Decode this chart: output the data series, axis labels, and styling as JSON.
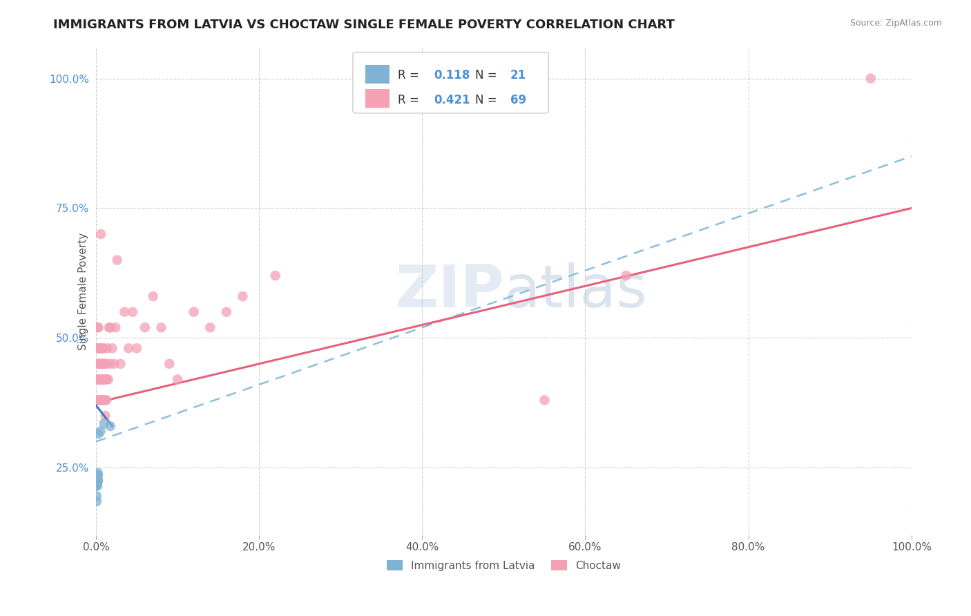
{
  "title": "IMMIGRANTS FROM LATVIA VS CHOCTAW SINGLE FEMALE POVERTY CORRELATION CHART",
  "source": "Source: ZipAtlas.com",
  "ylabel": "Single Female Poverty",
  "watermark": "ZIPAtlas",
  "legend_label1": "Immigrants from Latvia",
  "legend_label2": "Choctaw",
  "R1": 0.118,
  "N1": 21,
  "R2": 0.421,
  "N2": 69,
  "color_blue": "#7fb3d3",
  "color_pink": "#f4a0b5",
  "color_blue_text": "#4a90d9",
  "color_blue_line": "#89c0e0",
  "color_pink_line": "#e8607a",
  "xlim": [
    0.0,
    1.0
  ],
  "ylim": [
    0.12,
    1.06
  ],
  "blue_scatter_x": [
    0.0008,
    0.0008,
    0.001,
    0.001,
    0.0012,
    0.0012,
    0.0015,
    0.0015,
    0.0015,
    0.0018,
    0.0018,
    0.002,
    0.002,
    0.0022,
    0.0022,
    0.0025,
    0.0025,
    0.003,
    0.0055,
    0.01,
    0.0175
  ],
  "blue_scatter_y": [
    0.195,
    0.185,
    0.22,
    0.215,
    0.225,
    0.22,
    0.23,
    0.225,
    0.215,
    0.23,
    0.22,
    0.235,
    0.225,
    0.24,
    0.225,
    0.235,
    0.225,
    0.315,
    0.32,
    0.335,
    0.33
  ],
  "pink_scatter_x": [
    0.001,
    0.0015,
    0.0018,
    0.002,
    0.0022,
    0.0025,
    0.0025,
    0.0028,
    0.003,
    0.003,
    0.0035,
    0.004,
    0.004,
    0.0042,
    0.0045,
    0.0048,
    0.005,
    0.0052,
    0.0055,
    0.006,
    0.0062,
    0.0065,
    0.0068,
    0.007,
    0.0072,
    0.0075,
    0.0078,
    0.008,
    0.0082,
    0.0085,
    0.0088,
    0.009,
    0.0092,
    0.0095,
    0.01,
    0.0105,
    0.011,
    0.0115,
    0.012,
    0.0125,
    0.013,
    0.0135,
    0.014,
    0.015,
    0.016,
    0.017,
    0.018,
    0.02,
    0.022,
    0.024,
    0.026,
    0.03,
    0.035,
    0.04,
    0.045,
    0.05,
    0.06,
    0.07,
    0.08,
    0.09,
    0.1,
    0.12,
    0.14,
    0.16,
    0.18,
    0.22,
    0.55,
    0.65,
    0.95
  ],
  "pink_scatter_y": [
    0.38,
    0.42,
    0.48,
    0.52,
    0.38,
    0.42,
    0.48,
    0.45,
    0.42,
    0.52,
    0.45,
    0.48,
    0.38,
    0.45,
    0.42,
    0.48,
    0.42,
    0.38,
    0.45,
    0.7,
    0.42,
    0.45,
    0.48,
    0.42,
    0.38,
    0.48,
    0.42,
    0.45,
    0.38,
    0.42,
    0.45,
    0.42,
    0.48,
    0.38,
    0.42,
    0.45,
    0.38,
    0.35,
    0.42,
    0.45,
    0.38,
    0.42,
    0.48,
    0.42,
    0.52,
    0.45,
    0.52,
    0.48,
    0.45,
    0.52,
    0.65,
    0.45,
    0.55,
    0.48,
    0.55,
    0.48,
    0.52,
    0.58,
    0.52,
    0.45,
    0.42,
    0.55,
    0.52,
    0.55,
    0.58,
    0.62,
    0.38,
    0.62,
    1.0
  ],
  "blue_trend_x": [
    0.0,
    0.02
  ],
  "blue_trend_y": [
    0.37,
    0.33
  ],
  "blue_dashed_trend_x": [
    0.0,
    1.0
  ],
  "blue_dashed_trend_y": [
    0.3,
    0.85
  ],
  "pink_trend_x": [
    0.0,
    1.0
  ],
  "pink_trend_y": [
    0.375,
    0.75
  ],
  "xtick_labels": [
    "0.0%",
    "20.0%",
    "40.0%",
    "60.0%",
    "80.0%",
    "100.0%"
  ],
  "xtick_vals": [
    0.0,
    0.2,
    0.4,
    0.6,
    0.8,
    1.0
  ],
  "ytick_labels": [
    "25.0%",
    "50.0%",
    "75.0%",
    "100.0%"
  ],
  "ytick_vals": [
    0.25,
    0.5,
    0.75,
    1.0
  ],
  "background_color": "#ffffff",
  "grid_color": "#d0d0d0"
}
